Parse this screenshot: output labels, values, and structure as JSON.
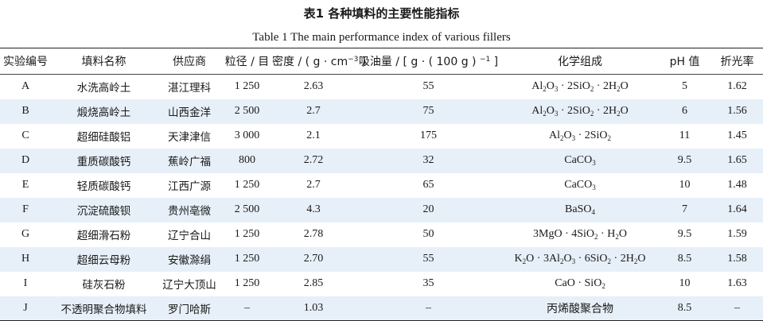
{
  "caption_cn": "表1  各种填料的主要性能指标",
  "caption_en": "Table 1   The main performance index of various fillers",
  "headers": {
    "id": "实验编号",
    "name": "填料名称",
    "supplier": "供应商",
    "size": "粒径 / 目",
    "density_prefix": "密度 / ( g · cm",
    "density_sup": "−3",
    "density_suffix": " )",
    "oil_prefix": "吸油量 / [ g · ( 100 g ) ",
    "oil_sup": "−1",
    "oil_suffix": " ]",
    "formula": "化学组成",
    "ph": "pH 值",
    "ri": "折光率"
  },
  "rows": [
    {
      "id": "A",
      "name": "水洗高岭土",
      "supplier": "湛江理科",
      "size": "1 250",
      "density": "2.63",
      "oil": "55",
      "formula": [
        {
          "t": "Al"
        },
        {
          "s": "2"
        },
        {
          "t": "O"
        },
        {
          "s": "3"
        },
        {
          "t": " · 2SiO"
        },
        {
          "s": "2"
        },
        {
          "t": " · 2H"
        },
        {
          "s": "2"
        },
        {
          "t": "O"
        }
      ],
      "ph": "5",
      "ri": "1.62"
    },
    {
      "id": "B",
      "name": "煅烧高岭土",
      "supplier": "山西金洋",
      "size": "2 500",
      "density": "2.7",
      "oil": "75",
      "formula": [
        {
          "t": "Al"
        },
        {
          "s": "2"
        },
        {
          "t": "O"
        },
        {
          "s": "3"
        },
        {
          "t": " · 2SiO"
        },
        {
          "s": "2"
        },
        {
          "t": " · 2H"
        },
        {
          "s": "2"
        },
        {
          "t": "O"
        }
      ],
      "ph": "6",
      "ri": "1.56"
    },
    {
      "id": "C",
      "name": "超细硅酸铝",
      "supplier": "天津津信",
      "size": "3 000",
      "density": "2.1",
      "oil": "175",
      "formula": [
        {
          "t": "Al"
        },
        {
          "s": "2"
        },
        {
          "t": "O"
        },
        {
          "s": "3"
        },
        {
          "t": " · 2SiO"
        },
        {
          "s": "2"
        }
      ],
      "ph": "11",
      "ri": "1.45"
    },
    {
      "id": "D",
      "name": "重质碳酸钙",
      "supplier": "蕉岭广福",
      "size": "800",
      "density": "2.72",
      "oil": "32",
      "formula": [
        {
          "t": "CaCO"
        },
        {
          "s": "3"
        }
      ],
      "ph": "9.5",
      "ri": "1.65"
    },
    {
      "id": "E",
      "name": "轻质碳酸钙",
      "supplier": "江西广源",
      "size": "1 250",
      "density": "2.7",
      "oil": "65",
      "formula": [
        {
          "t": "CaCO"
        },
        {
          "s": "3"
        }
      ],
      "ph": "10",
      "ri": "1.48"
    },
    {
      "id": "F",
      "name": "沉淀硫酸钡",
      "supplier": "贵州亳微",
      "size": "2 500",
      "density": "4.3",
      "oil": "20",
      "formula": [
        {
          "t": "BaSO"
        },
        {
          "s": "4"
        }
      ],
      "ph": "7",
      "ri": "1.64"
    },
    {
      "id": "G",
      "name": "超细滑石粉",
      "supplier": "辽宁合山",
      "size": "1 250",
      "density": "2.78",
      "oil": "50",
      "formula": [
        {
          "t": "3MgO · 4SiO"
        },
        {
          "s": "2"
        },
        {
          "t": " · H"
        },
        {
          "s": "2"
        },
        {
          "t": "O"
        }
      ],
      "ph": "9.5",
      "ri": "1.59"
    },
    {
      "id": "H",
      "name": "超细云母粉",
      "supplier": "安徽滁绢",
      "size": "1 250",
      "density": "2.70",
      "oil": "55",
      "formula": [
        {
          "t": "K"
        },
        {
          "s": "2"
        },
        {
          "t": "O · 3Al"
        },
        {
          "s": "2"
        },
        {
          "t": "O"
        },
        {
          "s": "3"
        },
        {
          "t": " · 6SiO"
        },
        {
          "s": "2"
        },
        {
          "t": " · 2H"
        },
        {
          "s": "2"
        },
        {
          "t": "O"
        }
      ],
      "ph": "8.5",
      "ri": "1.58"
    },
    {
      "id": "I",
      "name": "硅灰石粉",
      "supplier": "辽宁大顶山",
      "size": "1 250",
      "density": "2.85",
      "oil": "35",
      "formula": [
        {
          "t": "CaO · SiO"
        },
        {
          "s": "2"
        }
      ],
      "ph": "10",
      "ri": "1.63"
    },
    {
      "id": "J",
      "name": "不透明聚合物填料",
      "supplier": "罗门哈斯",
      "size": "–",
      "density": "1.03",
      "oil": "–",
      "formula": [
        {
          "t": "丙烯酸聚合物",
          "cn": true
        }
      ],
      "ph": "8.5",
      "ri": "–"
    }
  ]
}
